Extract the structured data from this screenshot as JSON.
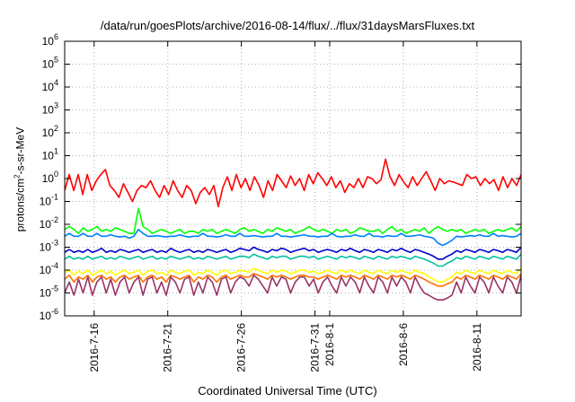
{
  "chart_data": {
    "type": "line",
    "title": "/data/run/goesPlots/archive/2016-08-14/flux/../flux/31daysMarsFluxes.txt",
    "xlabel": "Coordinated Universal Time (UTC)",
    "ylabel": {
      "before": "protons/cm",
      "sup": "2",
      "after": "-s-sr-MeV"
    },
    "yscale": "log",
    "ylim": [
      1e-06,
      1000000.0
    ],
    "y_ticks": [
      {
        "value": 1e-06,
        "base": "10",
        "exp": "-6"
      },
      {
        "value": 1e-05,
        "base": "10",
        "exp": "-5"
      },
      {
        "value": 0.0001,
        "base": "10",
        "exp": "-4"
      },
      {
        "value": 0.001,
        "base": "10",
        "exp": "-3"
      },
      {
        "value": 0.01,
        "base": "10",
        "exp": "-2"
      },
      {
        "value": 0.1,
        "base": "10",
        "exp": "-1"
      },
      {
        "value": 1,
        "base": "10",
        "exp": "0"
      },
      {
        "value": 10,
        "base": "10",
        "exp": "1"
      },
      {
        "value": 100,
        "base": "10",
        "exp": "2"
      },
      {
        "value": 1000,
        "base": "10",
        "exp": "3"
      },
      {
        "value": 10000,
        "base": "10",
        "exp": "4"
      },
      {
        "value": 100000,
        "base": "10",
        "exp": "5"
      },
      {
        "value": 1000000,
        "base": "10",
        "exp": "6"
      }
    ],
    "xlim": [
      "2016-07-14",
      "2016-08-14"
    ],
    "x_ticks": [
      {
        "date": "2016-07-16",
        "label": "2016-7-16"
      },
      {
        "date": "2016-07-21",
        "label": "2016-7-21"
      },
      {
        "date": "2016-07-26",
        "label": "2016-7-26"
      },
      {
        "date": "2016-07-31",
        "label": "2016-7-31"
      },
      {
        "date": "2016-08-01",
        "label": "2016-8-1"
      },
      {
        "date": "2016-08-06",
        "label": "2016-8-6"
      },
      {
        "date": "2016-08-11",
        "label": "2016-8-11"
      }
    ],
    "grid": true,
    "series": [
      {
        "color": "#ff0000",
        "values": [
          0.3,
          1.5,
          0.3,
          1.5,
          0.2,
          1.5,
          0.3,
          0.8,
          1.5,
          2.5,
          0.5,
          0.3,
          0.15,
          0.6,
          0.25,
          0.1,
          0.3,
          0.5,
          0.4,
          0.8,
          0.3,
          0.15,
          0.5,
          0.2,
          0.8,
          0.3,
          0.15,
          0.5,
          0.3,
          0.08,
          0.25,
          0.4,
          0.2,
          0.5,
          0.06,
          0.4,
          1.2,
          0.3,
          1.5,
          0.4,
          1.0,
          0.3,
          1.2,
          0.5,
          0.15,
          0.8,
          0.3,
          1.5,
          0.8,
          0.4,
          1.3,
          0.5,
          1.0,
          0.3,
          1.5,
          0.6,
          1.8,
          1.0,
          0.5,
          1.2,
          0.4,
          0.8,
          0.25,
          0.6,
          0.4,
          1.0,
          0.4,
          1.2,
          1.0,
          0.6,
          0.9,
          7.0,
          1.2,
          0.5,
          1.5,
          0.7,
          0.4,
          1.2,
          0.5,
          1.0,
          2.0,
          0.8,
          0.3,
          1.0,
          0.6,
          0.8,
          0.7,
          0.6,
          0.5,
          1.5,
          1.0,
          1.2,
          0.5,
          1.0,
          0.6,
          0.9,
          0.3,
          1.2,
          0.4,
          1.0,
          0.5,
          1.5
        ]
      },
      {
        "color": "#00ff00",
        "values": [
          0.006,
          0.008,
          0.006,
          0.004,
          0.007,
          0.005,
          0.006,
          0.008,
          0.005,
          0.006,
          0.005,
          0.007,
          0.006,
          0.005,
          0.004,
          0.004,
          0.05,
          0.008,
          0.006,
          0.004,
          0.005,
          0.006,
          0.005,
          0.004,
          0.005,
          0.006,
          0.004,
          0.005,
          0.005,
          0.004,
          0.006,
          0.005,
          0.006,
          0.004,
          0.005,
          0.006,
          0.005,
          0.004,
          0.006,
          0.007,
          0.005,
          0.006,
          0.005,
          0.004,
          0.006,
          0.005,
          0.007,
          0.006,
          0.005,
          0.006,
          0.004,
          0.005,
          0.006,
          0.008,
          0.006,
          0.005,
          0.006,
          0.005,
          0.004,
          0.006,
          0.005,
          0.006,
          0.004,
          0.005,
          0.007,
          0.006,
          0.005,
          0.005,
          0.006,
          0.004,
          0.006,
          0.008,
          0.005,
          0.006,
          0.004,
          0.005,
          0.006,
          0.005,
          0.007,
          0.004,
          0.006,
          0.008,
          0.006,
          0.005,
          0.006,
          0.005,
          0.006,
          0.004,
          0.005,
          0.006,
          0.005,
          0.006,
          0.004,
          0.005,
          0.006,
          0.005,
          0.006,
          0.007,
          0.005,
          0.008
        ]
      },
      {
        "color": "#0080ff",
        "values": [
          0.003,
          0.004,
          0.003,
          0.003,
          0.004,
          0.003,
          0.003,
          0.004,
          0.003,
          0.003,
          0.0035,
          0.003,
          0.0028,
          0.003,
          0.0025,
          0.003,
          0.006,
          0.004,
          0.003,
          0.003,
          0.0032,
          0.003,
          0.0028,
          0.003,
          0.003,
          0.0035,
          0.003,
          0.0028,
          0.003,
          0.003,
          0.004,
          0.003,
          0.003,
          0.0028,
          0.003,
          0.0035,
          0.003,
          0.003,
          0.004,
          0.003,
          0.003,
          0.0032,
          0.003,
          0.0028,
          0.003,
          0.003,
          0.004,
          0.003,
          0.003,
          0.0028,
          0.003,
          0.0032,
          0.0035,
          0.003,
          0.003,
          0.0028,
          0.003,
          0.003,
          0.004,
          0.003,
          0.0028,
          0.003,
          0.003,
          0.0035,
          0.003,
          0.003,
          0.004,
          0.003,
          0.003,
          0.0028,
          0.0032,
          0.003,
          0.003,
          0.004,
          0.003,
          0.003,
          0.0032,
          0.0035,
          0.003,
          0.0028,
          0.0025,
          0.0015,
          0.0012,
          0.0015,
          0.002,
          0.003,
          0.0028,
          0.003,
          0.0032,
          0.003,
          0.0035,
          0.003,
          0.003,
          0.004,
          0.003,
          0.0032,
          0.003,
          0.0028,
          0.003,
          0.004
        ]
      },
      {
        "color": "#0000cc",
        "values": [
          0.0006,
          0.0008,
          0.0006,
          0.0007,
          0.0006,
          0.0008,
          0.0006,
          0.0007,
          0.0009,
          0.0006,
          0.0007,
          0.0006,
          0.0008,
          0.0007,
          0.0006,
          0.0007,
          0.0008,
          0.0006,
          0.0007,
          0.0008,
          0.0006,
          0.0007,
          0.0006,
          0.0009,
          0.0007,
          0.0006,
          0.0007,
          0.0008,
          0.0006,
          0.0007,
          0.0006,
          0.0008,
          0.0007,
          0.0006,
          0.0007,
          0.0008,
          0.0006,
          0.0007,
          0.0009,
          0.0008,
          0.0007,
          0.001,
          0.0008,
          0.0007,
          0.0006,
          0.0008,
          0.0007,
          0.0009,
          0.0008,
          0.0006,
          0.0007,
          0.0008,
          0.0009,
          0.0007,
          0.0008,
          0.0006,
          0.0007,
          0.0008,
          0.0007,
          0.0006,
          0.0008,
          0.0007,
          0.0009,
          0.0007,
          0.0006,
          0.0008,
          0.0007,
          0.0006,
          0.0008,
          0.0007,
          0.0006,
          0.0008,
          0.0007,
          0.0009,
          0.0007,
          0.0006,
          0.0008,
          0.0007,
          0.0006,
          0.0005,
          0.0004,
          0.0003,
          0.0003,
          0.0004,
          0.0005,
          0.0007,
          0.0006,
          0.0008,
          0.0007,
          0.0006,
          0.0008,
          0.0007,
          0.0006,
          0.0008,
          0.0007,
          0.0006,
          0.0008,
          0.0007,
          0.0006,
          0.001
        ]
      },
      {
        "color": "#00c0a0",
        "values": [
          0.0003,
          0.0004,
          0.0003,
          0.00035,
          0.0003,
          0.0004,
          0.0003,
          0.00035,
          0.0004,
          0.0003,
          0.00035,
          0.0003,
          0.0004,
          0.00035,
          0.0003,
          0.00035,
          0.0004,
          0.0003,
          0.00035,
          0.0004,
          0.0003,
          0.00035,
          0.0003,
          0.0004,
          0.00035,
          0.0003,
          0.00035,
          0.0004,
          0.0003,
          0.00035,
          0.0003,
          0.0004,
          0.00035,
          0.0003,
          0.00035,
          0.0004,
          0.0003,
          0.00035,
          0.0004,
          0.0004,
          0.00035,
          0.0005,
          0.0004,
          0.00035,
          0.0003,
          0.0004,
          0.00035,
          0.0004,
          0.0004,
          0.0003,
          0.00035,
          0.0004,
          0.0004,
          0.00035,
          0.0004,
          0.0003,
          0.00035,
          0.0004,
          0.00035,
          0.0003,
          0.0004,
          0.00035,
          0.0004,
          0.00035,
          0.0003,
          0.0004,
          0.00035,
          0.0003,
          0.0004,
          0.00035,
          0.0003,
          0.0004,
          0.00035,
          0.0004,
          0.00035,
          0.0003,
          0.0004,
          0.00035,
          0.0003,
          0.00025,
          0.0002,
          0.00015,
          0.00015,
          0.0002,
          0.00025,
          0.00035,
          0.0003,
          0.0004,
          0.00035,
          0.0003,
          0.0004,
          0.00035,
          0.0003,
          0.0004,
          0.00035,
          0.0003,
          0.0004,
          0.00035,
          0.0003,
          0.0005
        ]
      },
      {
        "color": "#ffff00",
        "values": [
          8e-05,
          0.0001,
          6e-05,
          9e-05,
          7e-05,
          0.0001,
          6e-05,
          8e-05,
          0.0001,
          7e-05,
          9e-05,
          6e-05,
          8e-05,
          0.0001,
          7e-05,
          8e-05,
          0.0001,
          6e-05,
          9e-05,
          0.0001,
          7e-05,
          8e-05,
          6e-05,
          0.0001,
          8e-05,
          7e-05,
          9e-05,
          0.0001,
          6e-05,
          8e-05,
          7e-05,
          0.0001,
          8e-05,
          6e-05,
          9e-05,
          0.0001,
          7e-05,
          8e-05,
          0.0001,
          9e-05,
          8e-05,
          0.00012,
          0.0001,
          8e-05,
          7e-05,
          0.0001,
          8e-05,
          0.0001,
          9e-05,
          7e-05,
          8e-05,
          0.0001,
          0.0001,
          8e-05,
          9e-05,
          7e-05,
          8e-05,
          0.0001,
          8e-05,
          7e-05,
          0.0001,
          8e-05,
          0.0001,
          8e-05,
          7e-05,
          0.0001,
          8e-05,
          7e-05,
          0.0001,
          8e-05,
          7e-05,
          0.0001,
          8e-05,
          0.0001,
          8e-05,
          7e-05,
          0.0001,
          8e-05,
          7e-05,
          5e-05,
          4e-05,
          3e-05,
          3e-05,
          4e-05,
          5e-05,
          8e-05,
          7e-05,
          0.0001,
          8e-05,
          7e-05,
          0.0001,
          8e-05,
          7e-05,
          0.0001,
          8e-05,
          7e-05,
          0.0001,
          8e-05,
          7e-05,
          0.00012
        ]
      },
      {
        "color": "#ff7000",
        "values": [
          4e-05,
          6e-05,
          3e-05,
          5e-05,
          4e-05,
          6e-05,
          3e-05,
          5e-05,
          6e-05,
          4e-05,
          5e-05,
          3e-05,
          5e-05,
          6e-05,
          4e-05,
          5e-05,
          6e-05,
          3e-05,
          5e-05,
          6e-05,
          4e-05,
          5e-05,
          3e-05,
          6e-05,
          5e-05,
          4e-05,
          5e-05,
          6e-05,
          3e-05,
          5e-05,
          4e-05,
          6e-05,
          5e-05,
          3e-05,
          5e-05,
          6e-05,
          4e-05,
          5e-05,
          6e-05,
          5e-05,
          5e-05,
          7e-05,
          6e-05,
          5e-05,
          4e-05,
          6e-05,
          5e-05,
          6e-05,
          5e-05,
          4e-05,
          5e-05,
          6e-05,
          6e-05,
          5e-05,
          5e-05,
          4e-05,
          5e-05,
          6e-05,
          5e-05,
          4e-05,
          6e-05,
          5e-05,
          6e-05,
          5e-05,
          4e-05,
          6e-05,
          5e-05,
          4e-05,
          6e-05,
          5e-05,
          4e-05,
          6e-05,
          5e-05,
          6e-05,
          5e-05,
          4e-05,
          6e-05,
          5e-05,
          4e-05,
          3e-05,
          2.5e-05,
          2e-05,
          2e-05,
          2.5e-05,
          3e-05,
          5e-05,
          4e-05,
          6e-05,
          5e-05,
          4e-05,
          6e-05,
          5e-05,
          4e-05,
          6e-05,
          5e-05,
          4e-05,
          6e-05,
          5e-05,
          4e-05,
          7e-05
        ]
      },
      {
        "color": "#993366",
        "values": [
          1e-05,
          3e-05,
          8e-06,
          4e-05,
          1e-05,
          5e-05,
          8e-06,
          3e-05,
          5e-05,
          1e-05,
          4e-05,
          8e-06,
          3e-05,
          5e-05,
          1e-05,
          3e-05,
          5e-05,
          8e-06,
          4e-05,
          5e-05,
          1e-05,
          3e-05,
          8e-06,
          5e-05,
          3e-05,
          1e-05,
          4e-05,
          5e-05,
          8e-06,
          3e-05,
          1e-05,
          5e-05,
          3e-05,
          8e-06,
          4e-05,
          5e-05,
          1e-05,
          3e-05,
          5e-05,
          4e-05,
          2e-05,
          6e-05,
          4e-05,
          2e-05,
          1e-05,
          5e-05,
          2e-05,
          5e-05,
          4e-05,
          1e-05,
          3e-05,
          5e-05,
          5e-05,
          2e-05,
          4e-05,
          1e-05,
          3e-05,
          5e-05,
          2e-05,
          1e-05,
          5e-05,
          2e-05,
          5e-05,
          3e-05,
          1e-05,
          5e-05,
          2e-05,
          1e-05,
          5e-05,
          3e-05,
          1e-05,
          5e-05,
          2e-05,
          5e-05,
          3e-05,
          1e-05,
          5e-05,
          2e-05,
          1e-05,
          8e-06,
          6e-06,
          5e-06,
          5e-06,
          6e-06,
          8e-06,
          3e-05,
          1e-05,
          5e-05,
          2e-05,
          1e-05,
          5e-05,
          3e-05,
          1e-05,
          5e-05,
          2e-05,
          1e-05,
          5e-05,
          3e-05,
          1e-05,
          6e-05
        ]
      }
    ]
  }
}
